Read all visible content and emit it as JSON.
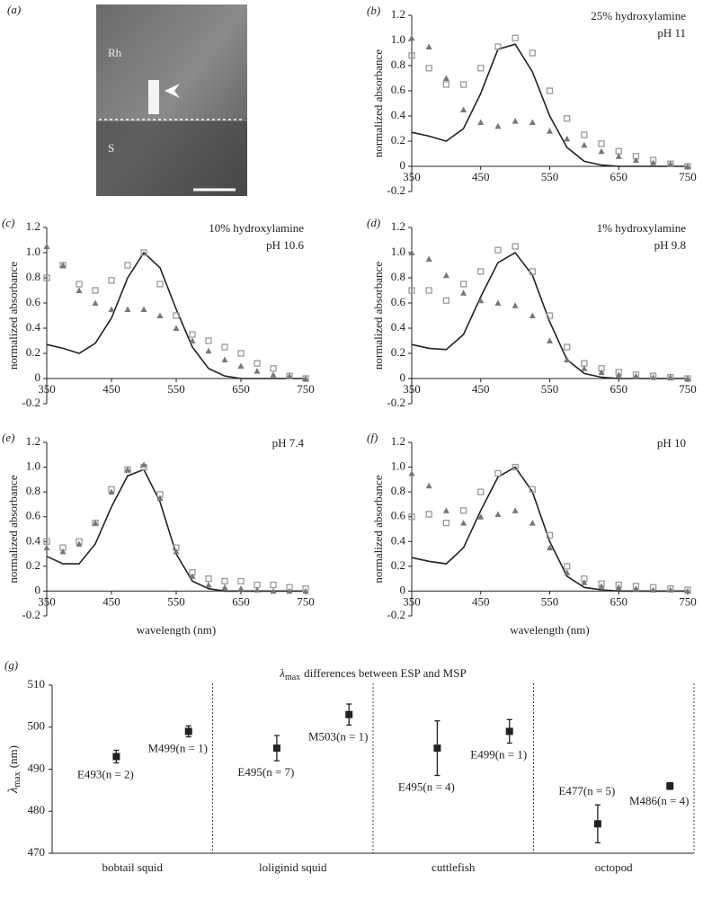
{
  "image_panel": {
    "panel_label": "(a)",
    "labels": [
      "Rh",
      "S"
    ]
  },
  "chart_data": [
    {
      "type": "scatter",
      "panel_label": "(b)",
      "annotations": [
        "25% hydroxylamine",
        "pH 11"
      ],
      "y_label": "normalized absorbance",
      "x": [
        350,
        375,
        400,
        425,
        450,
        475,
        500,
        525,
        550,
        575,
        600,
        625,
        650,
        675,
        700,
        725,
        750
      ],
      "series": [
        {
          "color": "#222222",
          "marker": "none",
          "values": [
            0.27,
            0.24,
            0.2,
            0.3,
            0.58,
            0.93,
            0.97,
            0.75,
            0.4,
            0.15,
            0.04,
            0.01,
            0,
            0,
            0,
            0,
            0
          ]
        },
        {
          "color": "#9a9a9a",
          "marker": "square",
          "values": [
            0.88,
            0.78,
            0.65,
            0.65,
            0.78,
            0.95,
            1.02,
            0.9,
            0.6,
            0.38,
            0.25,
            0.18,
            0.12,
            0.08,
            0.05,
            0.02,
            0
          ]
        },
        {
          "color": "#777777",
          "marker": "triangle",
          "values": [
            1.02,
            0.95,
            0.7,
            0.45,
            0.35,
            0.32,
            0.36,
            0.35,
            0.28,
            0.22,
            0.17,
            0.12,
            0.08,
            0.05,
            0.03,
            0.02,
            0
          ]
        }
      ],
      "xlim": [
        350,
        750
      ],
      "xticks": [
        350,
        450,
        550,
        650,
        750
      ],
      "ylim": [
        -0.2,
        1.2
      ],
      "yticks": [
        -0.2,
        {
          "value": 0,
          "label": "0"
        },
        0.2,
        0.4,
        0.6,
        0.8,
        {
          "value": 1,
          "label": "1.0"
        },
        1.2
      ]
    },
    {
      "type": "scatter",
      "panel_label": "(c)",
      "annotations": [
        "10% hydroxylamine",
        "pH 10.6"
      ],
      "y_label": "normalized absorbance",
      "x": [
        350,
        375,
        400,
        425,
        450,
        475,
        500,
        525,
        550,
        575,
        600,
        625,
        650,
        675,
        700,
        725,
        750
      ],
      "series": [
        {
          "color": "#222222",
          "marker": "none",
          "values": [
            0.27,
            0.24,
            0.2,
            0.28,
            0.48,
            0.8,
            1.0,
            0.88,
            0.55,
            0.25,
            0.08,
            0.02,
            0,
            0,
            0,
            0,
            0
          ]
        },
        {
          "color": "#9a9a9a",
          "marker": "square",
          "values": [
            0.8,
            0.9,
            0.75,
            0.7,
            0.78,
            0.9,
            1.0,
            0.75,
            0.5,
            0.35,
            0.3,
            0.25,
            0.2,
            0.12,
            0.08,
            0.02,
            0
          ]
        },
        {
          "color": "#777777",
          "marker": "triangle",
          "values": [
            1.05,
            0.9,
            0.7,
            0.6,
            0.55,
            0.55,
            0.55,
            0.5,
            0.4,
            0.3,
            0.22,
            0.15,
            0.1,
            0.06,
            0.03,
            0.02,
            0
          ]
        }
      ],
      "xlim": [
        350,
        750
      ],
      "xticks": [
        350,
        450,
        550,
        650,
        750
      ],
      "ylim": [
        -0.2,
        1.2
      ],
      "yticks": [
        -0.2,
        {
          "value": 0,
          "label": "0"
        },
        0.2,
        0.4,
        0.6,
        0.8,
        {
          "value": 1,
          "label": "1.0"
        },
        1.2
      ]
    },
    {
      "type": "scatter",
      "panel_label": "(d)",
      "annotations": [
        "1% hydroxylamine",
        "pH 9.8"
      ],
      "y_label": "normalized absorbance",
      "x": [
        350,
        375,
        400,
        425,
        450,
        475,
        500,
        525,
        550,
        575,
        600,
        625,
        650,
        675,
        700,
        725,
        750
      ],
      "series": [
        {
          "color": "#222222",
          "marker": "none",
          "values": [
            0.27,
            0.24,
            0.23,
            0.35,
            0.65,
            0.92,
            1.0,
            0.82,
            0.45,
            0.15,
            0.04,
            0.01,
            0,
            0,
            0,
            0,
            0
          ]
        },
        {
          "color": "#9a9a9a",
          "marker": "square",
          "values": [
            0.7,
            0.7,
            0.62,
            0.75,
            0.85,
            1.02,
            1.05,
            0.85,
            0.5,
            0.25,
            0.12,
            0.08,
            0.05,
            0.03,
            0.02,
            0.01,
            0
          ]
        },
        {
          "color": "#777777",
          "marker": "triangle",
          "values": [
            1.0,
            0.95,
            0.82,
            0.68,
            0.62,
            0.6,
            0.58,
            0.5,
            0.3,
            0.15,
            0.08,
            0.05,
            0.03,
            0.02,
            0.01,
            0.01,
            0
          ]
        }
      ],
      "xlim": [
        350,
        750
      ],
      "xticks": [
        350,
        450,
        550,
        650,
        750
      ],
      "ylim": [
        -0.2,
        1.2
      ],
      "yticks": [
        -0.2,
        {
          "value": 0,
          "label": "0"
        },
        0.2,
        0.4,
        0.6,
        0.8,
        {
          "value": 1,
          "label": "1.0"
        },
        1.2
      ]
    },
    {
      "type": "scatter",
      "panel_label": "(e)",
      "annotations": [
        "pH 7.4"
      ],
      "y_label": "normalized absorbance",
      "x_label": "wavelength (nm)",
      "x": [
        350,
        375,
        400,
        425,
        450,
        475,
        500,
        525,
        550,
        575,
        600,
        625,
        650,
        675,
        700,
        725,
        750
      ],
      "series": [
        {
          "color": "#222222",
          "marker": "none",
          "values": [
            0.28,
            0.22,
            0.22,
            0.38,
            0.68,
            0.93,
            0.98,
            0.72,
            0.3,
            0.08,
            0.02,
            0,
            0,
            0,
            0,
            0,
            0
          ]
        },
        {
          "color": "#9a9a9a",
          "marker": "square",
          "values": [
            0.4,
            0.35,
            0.4,
            0.55,
            0.82,
            0.98,
            1.0,
            0.78,
            0.35,
            0.15,
            0.1,
            0.08,
            0.08,
            0.05,
            0.05,
            0.03,
            0.02
          ]
        },
        {
          "color": "#777777",
          "marker": "triangle",
          "values": [
            0.35,
            0.32,
            0.38,
            0.55,
            0.8,
            0.98,
            1.02,
            0.75,
            0.32,
            0.12,
            0.05,
            0.03,
            0.02,
            0.01,
            0,
            0,
            0
          ]
        }
      ],
      "xlim": [
        350,
        750
      ],
      "xticks": [
        350,
        450,
        550,
        650,
        750
      ],
      "ylim": [
        -0.2,
        1.2
      ],
      "yticks": [
        -0.2,
        {
          "value": 0,
          "label": "0"
        },
        0.2,
        0.4,
        0.6,
        0.8,
        {
          "value": 1,
          "label": "1.0"
        },
        1.2
      ]
    },
    {
      "type": "scatter",
      "panel_label": "(f)",
      "annotations": [
        "pH 10"
      ],
      "y_label": "normalized absorbance",
      "x_label": "wavelength (nm)",
      "x": [
        350,
        375,
        400,
        425,
        450,
        475,
        500,
        525,
        550,
        575,
        600,
        625,
        650,
        675,
        700,
        725,
        750
      ],
      "series": [
        {
          "color": "#222222",
          "marker": "none",
          "values": [
            0.27,
            0.24,
            0.22,
            0.35,
            0.65,
            0.92,
            1.0,
            0.8,
            0.4,
            0.12,
            0.03,
            0.01,
            0,
            0,
            0,
            0,
            0
          ]
        },
        {
          "color": "#9a9a9a",
          "marker": "square",
          "values": [
            0.6,
            0.62,
            0.55,
            0.65,
            0.8,
            0.95,
            1.0,
            0.82,
            0.45,
            0.2,
            0.1,
            0.06,
            0.05,
            0.04,
            0.03,
            0.02,
            0.01
          ]
        },
        {
          "color": "#777777",
          "marker": "triangle",
          "values": [
            0.95,
            0.85,
            0.65,
            0.55,
            0.6,
            0.62,
            0.65,
            0.55,
            0.35,
            0.15,
            0.07,
            0.04,
            0.03,
            0.02,
            0.01,
            0.01,
            0
          ]
        }
      ],
      "xlim": [
        350,
        750
      ],
      "xticks": [
        350,
        450,
        550,
        650,
        750
      ],
      "ylim": [
        -0.2,
        1.2
      ],
      "yticks": [
        -0.2,
        {
          "value": 0,
          "label": "0"
        },
        0.2,
        0.4,
        0.6,
        0.8,
        {
          "value": 1,
          "label": "1.0"
        },
        1.2
      ]
    },
    {
      "type": "errorbar",
      "panel_label": "(g)",
      "title": {
        "symbol": "λ",
        "subscript": "max",
        "text": "differences between ESP and MSP"
      },
      "y_label": {
        "symbol": "λ",
        "subscript": "max",
        "text": "(nm)"
      },
      "categories": [
        "bobtail squid",
        "loliginid squid",
        "cuttlefish",
        "octopod"
      ],
      "series": [
        {
          "color": "#222222",
          "values": [
            493,
            495,
            495,
            477
          ],
          "errors": [
            1.5,
            3,
            6.5,
            4.5
          ],
          "value_labels": [
            "E493(n = 2)",
            "E495(n = 7)",
            "E495(n = 4)",
            "E477(n = 5)"
          ]
        },
        {
          "color": "#222222",
          "values": [
            499,
            503,
            499,
            486
          ],
          "errors": [
            1.3,
            2.5,
            2.8,
            0.8
          ],
          "value_labels": [
            "M499(n = 1)",
            "M503(n = 1)",
            "E499(n = 1)",
            "M486(n = 4)"
          ]
        }
      ],
      "ylim": [
        470,
        510
      ],
      "yticks": [
        470,
        480,
        490,
        500,
        510
      ]
    }
  ]
}
